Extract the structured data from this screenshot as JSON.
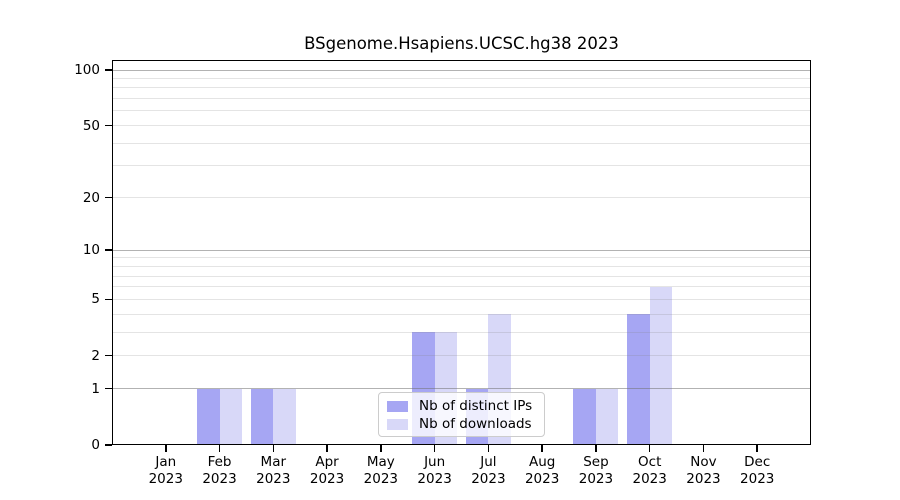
{
  "chart_data": {
    "type": "bar",
    "title": "BSgenome.Hsapiens.UCSC.hg38 2023",
    "categories": [
      {
        "month": "Jan",
        "year": "2023"
      },
      {
        "month": "Feb",
        "year": "2023"
      },
      {
        "month": "Mar",
        "year": "2023"
      },
      {
        "month": "Apr",
        "year": "2023"
      },
      {
        "month": "May",
        "year": "2023"
      },
      {
        "month": "Jun",
        "year": "2023"
      },
      {
        "month": "Jul",
        "year": "2023"
      },
      {
        "month": "Aug",
        "year": "2023"
      },
      {
        "month": "Sep",
        "year": "2023"
      },
      {
        "month": "Oct",
        "year": "2023"
      },
      {
        "month": "Nov",
        "year": "2023"
      },
      {
        "month": "Dec",
        "year": "2023"
      }
    ],
    "series": [
      {
        "name": "Nb of distinct IPs",
        "key": "distinct-ips",
        "color": "#a6a6f3",
        "values": [
          0,
          1,
          1,
          0,
          0,
          3,
          1,
          0,
          1,
          4,
          0,
          0
        ]
      },
      {
        "name": "Nb of downloads",
        "key": "downloads",
        "color": "#d8d8f8",
        "values": [
          0,
          1,
          1,
          0,
          0,
          3,
          4,
          0,
          1,
          6,
          0,
          0
        ]
      }
    ],
    "y_axis": {
      "scale": "log10(1+x)",
      "range": [
        0,
        100
      ],
      "tick_values": [
        0,
        1,
        2,
        5,
        10,
        20,
        50,
        100
      ],
      "major_gridlines": [
        1,
        10,
        100
      ],
      "minor_gridlines": [
        2,
        3,
        4,
        5,
        6,
        7,
        8,
        9,
        20,
        30,
        40,
        50,
        60,
        70,
        80,
        90
      ]
    },
    "xlabel": "",
    "ylabel": "",
    "grid": true,
    "legend_position": "lower center"
  },
  "colors": {
    "background": "#ffffff",
    "axis": "#000000",
    "grid_major": "#b8b8b8",
    "grid_minor": "#e8e8e8",
    "bar_distinct_ips": "#a6a6f3",
    "bar_downloads": "#d8d8f8",
    "legend_border": "#cccccc"
  }
}
